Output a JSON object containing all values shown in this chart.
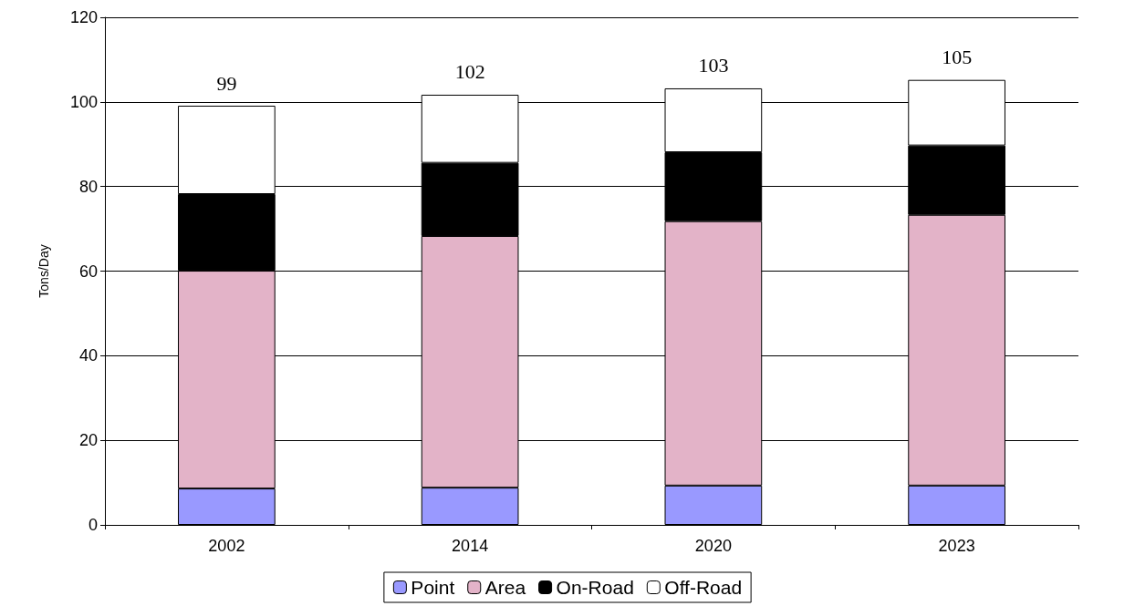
{
  "chart_data": {
    "type": "bar",
    "stacked": true,
    "ylabel": "Tons/Day",
    "categories": [
      "2002",
      "2014",
      "2020",
      "2023"
    ],
    "series": [
      {
        "name": "Point",
        "color": "#9999ff",
        "values": [
          8.6,
          8.8,
          9.3,
          9.3
        ]
      },
      {
        "name": "Area",
        "color": "#e3b3c8",
        "values": [
          51.5,
          59.5,
          62.5,
          64.0
        ]
      },
      {
        "name": "On-Road",
        "color": "#000000",
        "values": [
          18.1,
          17.3,
          16.3,
          16.4
        ]
      },
      {
        "name": "Off-Road",
        "color": "#ffffff",
        "values": [
          20.9,
          16.1,
          15.1,
          15.5
        ]
      }
    ],
    "totals": [
      "99",
      "102",
      "103",
      "105"
    ],
    "ylim": [
      0,
      120
    ],
    "yticks": [
      0,
      20,
      40,
      60,
      80,
      100,
      120
    ],
    "grid": "y",
    "legend": "bottom"
  }
}
